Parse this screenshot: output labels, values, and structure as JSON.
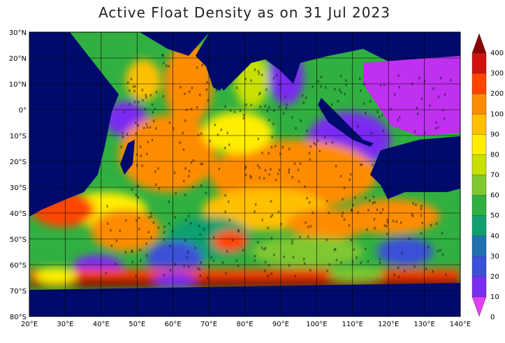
{
  "title": "Active Float Density as on 31 Jul 2023",
  "map": {
    "lon_range": [
      20,
      140
    ],
    "lat_range": [
      -80,
      30
    ],
    "lon_ticks": [
      "20°E",
      "30°E",
      "40°E",
      "50°E",
      "60°E",
      "70°E",
      "80°E",
      "90°E",
      "100°E",
      "110°E",
      "120°E",
      "130°E",
      "140°E"
    ],
    "lat_ticks": [
      "30°N",
      "20°N",
      "10°N",
      "0°",
      "10°S",
      "20°S",
      "30°S",
      "40°S",
      "50°S",
      "60°S",
      "70°S",
      "80°S"
    ],
    "land_color": "#000a6e",
    "grid": true
  },
  "colorbar": {
    "labels": [
      "400",
      "300",
      "200",
      "100",
      "90",
      "80",
      "70",
      "60",
      "50",
      "40",
      "30",
      "20",
      "10",
      "0"
    ],
    "colors": [
      "#8b0000",
      "#d21010",
      "#ff4400",
      "#ff8c00",
      "#ffc000",
      "#ffee00",
      "#c8e000",
      "#80c830",
      "#30b040",
      "#10a070",
      "#2070b0",
      "#3a50d8",
      "#7a2cf0",
      "#e040f0"
    ]
  }
}
